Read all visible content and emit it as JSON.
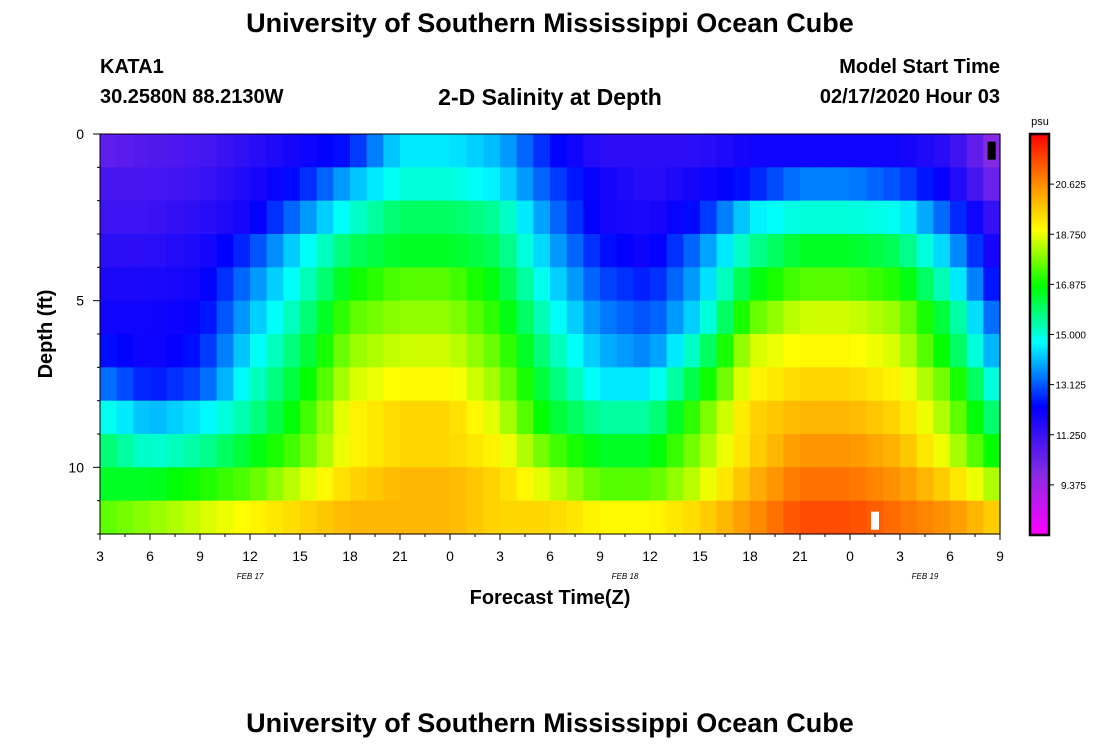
{
  "header": {
    "title": "University of Southern Mississippi Ocean Cube",
    "station_id": "KATA1",
    "station_coords": "30.2580N 88.2130W",
    "chart_title": "2-D Salinity at Depth",
    "model_start_label": "Model Start Time",
    "model_start_value": "02/17/2020 Hour 03"
  },
  "footer": {
    "title": "University of Southern Mississippi Ocean Cube"
  },
  "chart_data": {
    "type": "heatmap",
    "title": "2-D Salinity at Depth",
    "xlabel": "Forecast Time(Z)",
    "ylabel": "Depth (ft)",
    "x_ticks": [
      "3",
      "6",
      "9",
      "12",
      "15",
      "18",
      "21",
      "0",
      "3",
      "6",
      "9",
      "12",
      "15",
      "18",
      "21",
      "0",
      "3",
      "6",
      "9"
    ],
    "x_hours_range": [
      0,
      54
    ],
    "date_labels": [
      {
        "label": "FEB 17",
        "hour": 9
      },
      {
        "label": "FEB 18",
        "hour": 31.5
      },
      {
        "label": "FEB 19",
        "hour": 49.5
      }
    ],
    "y_ticks": [
      "0",
      "5",
      "10"
    ],
    "ylim": [
      0,
      12
    ],
    "colorbar": {
      "unit": "psu",
      "tick_labels": [
        "20.625",
        "18.750",
        "16.875",
        "15.000",
        "13.125",
        "11.250",
        "9.375"
      ],
      "range": [
        7.5,
        22.5
      ]
    },
    "depth_levels": [
      0.5,
      1.5,
      2.5,
      3.5,
      4.5,
      5.5,
      6.5,
      7.5,
      8.5,
      9.5,
      10.5,
      11.5
    ],
    "column_hours": [
      0,
      3,
      6,
      9,
      12,
      15,
      18,
      21,
      24,
      27,
      30,
      33,
      36,
      39,
      42,
      45,
      48,
      51,
      54
    ],
    "values": [
      [
        10.5,
        10.8,
        11.0,
        11.5,
        12.0,
        12.5,
        14.5,
        14.5,
        14.0,
        12.5,
        11.5,
        11.5,
        11.5,
        12.0,
        12.0,
        12.0,
        12.0,
        11.5,
        9.5
      ],
      [
        11.0,
        11.0,
        11.2,
        11.8,
        12.5,
        14.0,
        15.0,
        15.0,
        14.5,
        13.0,
        12.0,
        11.5,
        12.0,
        12.5,
        13.5,
        13.5,
        13.0,
        12.0,
        10.0
      ],
      [
        11.2,
        11.2,
        11.5,
        12.0,
        13.5,
        15.0,
        16.0,
        16.0,
        15.5,
        13.5,
        12.0,
        11.8,
        12.5,
        14.5,
        15.0,
        15.0,
        14.8,
        13.0,
        11.0
      ],
      [
        11.5,
        11.5,
        11.8,
        12.8,
        14.5,
        16.0,
        16.5,
        16.5,
        16.0,
        14.0,
        12.5,
        12.0,
        13.5,
        15.5,
        16.5,
        16.5,
        16.0,
        14.0,
        11.5
      ],
      [
        11.8,
        11.8,
        12.0,
        13.5,
        15.0,
        16.8,
        17.5,
        17.5,
        16.5,
        14.5,
        13.0,
        12.5,
        14.0,
        16.5,
        17.5,
        17.5,
        17.0,
        15.0,
        12.0
      ],
      [
        12.0,
        12.0,
        12.2,
        14.0,
        15.5,
        17.5,
        18.0,
        18.0,
        17.0,
        15.0,
        13.5,
        13.0,
        14.5,
        17.5,
        18.5,
        18.5,
        18.0,
        16.0,
        12.8
      ],
      [
        12.5,
        12.0,
        12.5,
        14.5,
        16.0,
        18.0,
        18.5,
        18.5,
        17.5,
        15.5,
        14.0,
        13.5,
        15.5,
        18.5,
        19.0,
        19.0,
        18.5,
        16.5,
        13.5
      ],
      [
        13.5,
        12.5,
        13.0,
        15.0,
        16.5,
        18.5,
        19.0,
        19.0,
        18.0,
        16.0,
        14.5,
        14.5,
        16.5,
        19.0,
        19.5,
        19.5,
        19.0,
        17.5,
        14.5
      ],
      [
        15.0,
        14.0,
        14.5,
        15.5,
        17.0,
        19.0,
        19.5,
        19.5,
        18.5,
        16.5,
        15.5,
        15.5,
        17.5,
        19.5,
        20.0,
        20.0,
        19.5,
        18.0,
        15.5
      ],
      [
        16.0,
        15.0,
        15.5,
        16.5,
        17.5,
        19.0,
        19.5,
        19.5,
        19.0,
        17.5,
        16.5,
        16.5,
        18.0,
        19.5,
        20.5,
        20.5,
        20.0,
        18.5,
        16.5
      ],
      [
        16.5,
        16.5,
        17.0,
        17.5,
        18.5,
        19.5,
        20.0,
        20.0,
        19.5,
        18.5,
        17.5,
        17.5,
        18.5,
        20.0,
        21.0,
        21.0,
        20.5,
        19.5,
        18.0
      ],
      [
        17.5,
        18.0,
        18.5,
        19.0,
        19.5,
        20.0,
        20.0,
        20.0,
        19.5,
        19.5,
        19.0,
        19.0,
        19.5,
        20.5,
        21.5,
        21.5,
        21.0,
        20.5,
        19.5
      ]
    ],
    "markers": [
      {
        "name": "black-marker",
        "hour": 53.5,
        "depth": 0.5,
        "color": "#000000"
      },
      {
        "name": "white-marker",
        "hour": 46.5,
        "depth": 11.6,
        "color": "#ffffff"
      }
    ]
  }
}
